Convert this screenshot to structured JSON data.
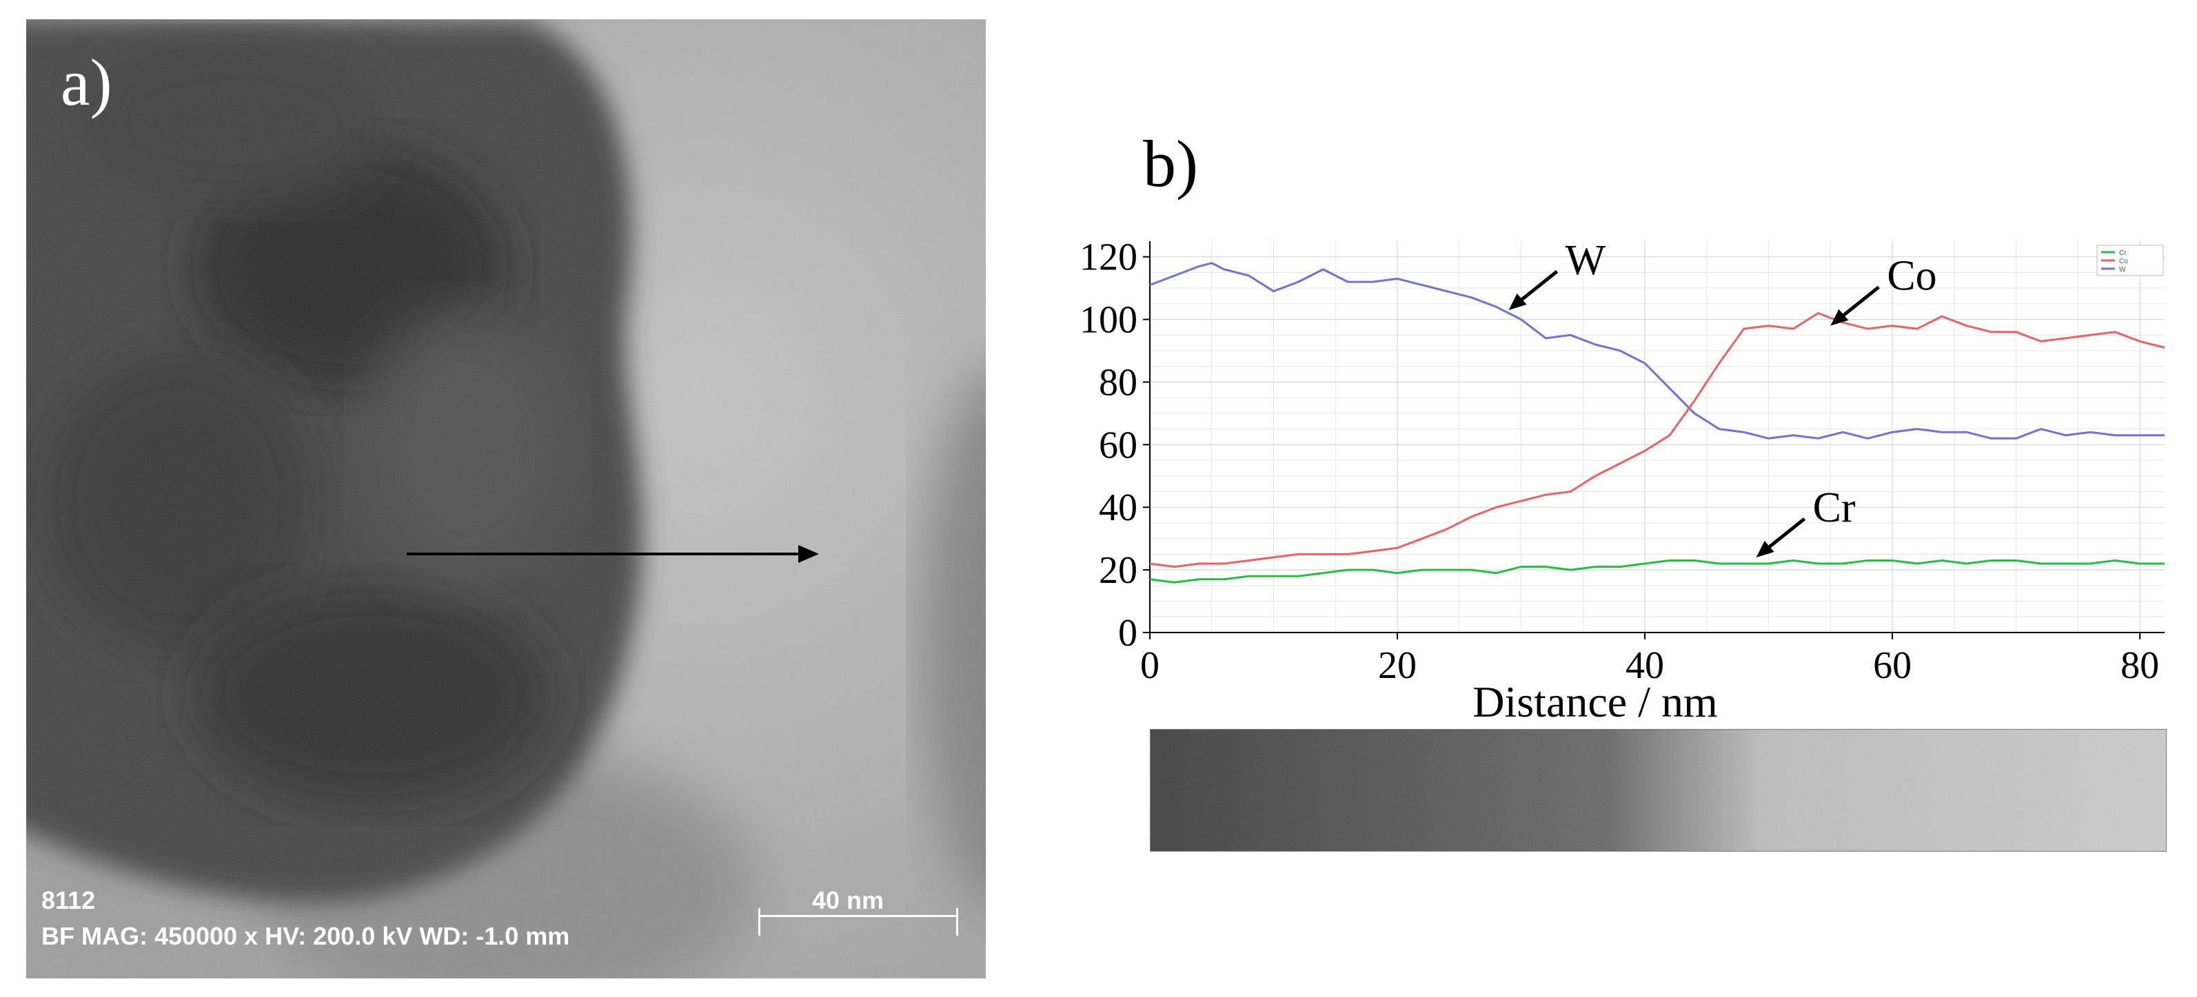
{
  "panels": {
    "a": {
      "label": "a)",
      "image_id": "8112",
      "info_line": "BF  MAG: 450000 x  HV: 200.0 kV  WD: -1.0 mm",
      "scale_bar_label": "40 nm",
      "colors": {
        "particle": "#2e2e2e",
        "background": "#a6a6a6",
        "arrow": "#000000"
      }
    },
    "b": {
      "label": "b)"
    }
  },
  "chart_data": {
    "type": "line",
    "title": "",
    "xlabel": "Distance / nm",
    "ylabel": "",
    "xlim": [
      0,
      82
    ],
    "ylim": [
      0,
      125
    ],
    "xticks": [
      0,
      20,
      40,
      60,
      80
    ],
    "yticks": [
      0,
      20,
      40,
      60,
      80,
      100,
      120
    ],
    "grid": true,
    "legend_position": "top-right",
    "series": [
      {
        "name": "W",
        "color": "#7070e0",
        "x": [
          0,
          2,
          4,
          5,
          6,
          8,
          10,
          12,
          14,
          16,
          18,
          20,
          22,
          24,
          26,
          28,
          30,
          32,
          34,
          36,
          38,
          40,
          42,
          44,
          46,
          48,
          50,
          52,
          54,
          56,
          58,
          60,
          62,
          64,
          66,
          68,
          70,
          72,
          74,
          76,
          78,
          80,
          82
        ],
        "values": [
          111,
          114,
          117,
          118,
          116,
          114,
          109,
          112,
          116,
          112,
          112,
          113,
          111,
          109,
          107,
          104,
          100,
          94,
          95,
          92,
          90,
          86,
          78,
          70,
          65,
          64,
          62,
          63,
          62,
          64,
          62,
          64,
          65,
          64,
          64,
          62,
          62,
          65,
          63,
          64,
          63,
          63,
          63
        ]
      },
      {
        "name": "Co",
        "color": "#f06060",
        "x": [
          0,
          2,
          4,
          6,
          8,
          10,
          12,
          14,
          16,
          18,
          20,
          22,
          24,
          26,
          28,
          30,
          32,
          34,
          36,
          38,
          40,
          42,
          44,
          46,
          48,
          50,
          52,
          54,
          56,
          58,
          60,
          62,
          64,
          66,
          68,
          70,
          72,
          74,
          76,
          78,
          80,
          82
        ],
        "values": [
          22,
          21,
          22,
          22,
          23,
          24,
          25,
          25,
          25,
          26,
          27,
          30,
          33,
          37,
          40,
          42,
          44,
          45,
          50,
          54,
          58,
          63,
          74,
          86,
          97,
          98,
          97,
          102,
          99,
          97,
          98,
          97,
          101,
          98,
          96,
          96,
          93,
          94,
          95,
          96,
          93,
          91
        ]
      },
      {
        "name": "Cr",
        "color": "#20c040",
        "x": [
          0,
          2,
          4,
          6,
          8,
          10,
          12,
          14,
          16,
          18,
          20,
          22,
          24,
          26,
          28,
          30,
          32,
          34,
          36,
          38,
          40,
          42,
          44,
          46,
          48,
          50,
          52,
          54,
          56,
          58,
          60,
          62,
          64,
          66,
          68,
          70,
          72,
          74,
          76,
          78,
          80,
          82
        ],
        "values": [
          17,
          16,
          17,
          17,
          18,
          18,
          18,
          19,
          20,
          20,
          19,
          20,
          20,
          20,
          19,
          21,
          21,
          20,
          21,
          21,
          22,
          23,
          23,
          22,
          22,
          22,
          23,
          22,
          22,
          23,
          23,
          22,
          23,
          22,
          23,
          23,
          22,
          22,
          22,
          23,
          22,
          22
        ]
      }
    ],
    "annotations": [
      {
        "text": "W",
        "series": "W",
        "x": 29,
        "y": 103
      },
      {
        "text": "Co",
        "series": "Co",
        "x": 55,
        "y": 98
      },
      {
        "text": "Cr",
        "series": "Cr",
        "x": 49,
        "y": 24
      }
    ]
  }
}
